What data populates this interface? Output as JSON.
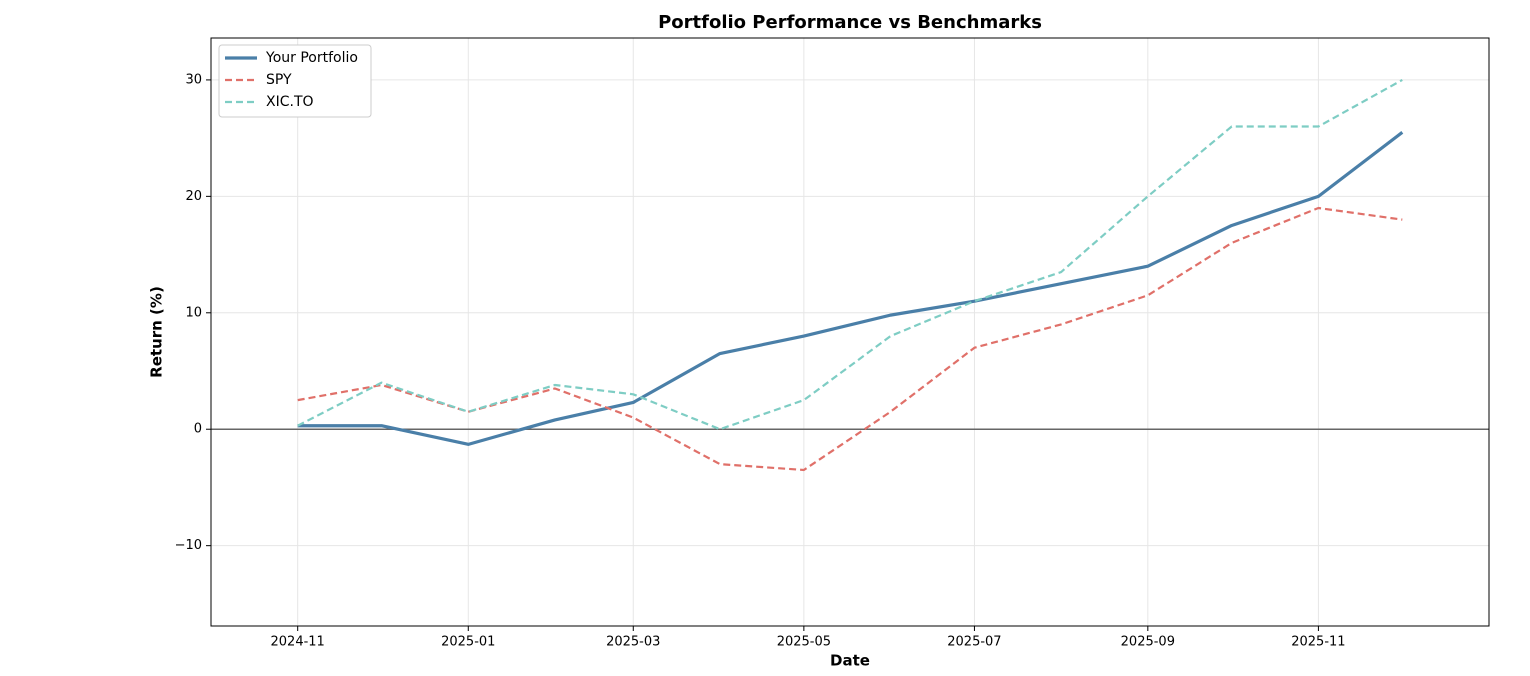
{
  "chart_data": {
    "type": "line",
    "title": "Portfolio Performance vs Benchmarks",
    "x_label": "Date",
    "y_label": "Return (%)",
    "x": [
      "2024-11",
      "2024-12",
      "2025-01",
      "2025-02",
      "2025-03",
      "2025-04",
      "2025-05",
      "2025-06",
      "2025-07",
      "2025-08",
      "2025-09",
      "2025-10",
      "2025-11",
      "2025-12"
    ],
    "series": [
      {
        "name": "Your Portfolio",
        "color": "#4a7fa8",
        "linestyle": "solid",
        "values": [
          0.3,
          0.3,
          -1.3,
          0.8,
          2.3,
          6.5,
          8,
          9.8,
          11,
          12.5,
          14,
          17.5,
          20,
          25.5
        ]
      },
      {
        "name": "SPY",
        "color": "#e07069",
        "linestyle": "dashed",
        "values": [
          2.5,
          3.8,
          1.5,
          3.5,
          1,
          -3,
          -3.5,
          1.5,
          7,
          9,
          11.5,
          16,
          19,
          18
        ]
      },
      {
        "name": "XIC.TO",
        "color": "#7ecdc4",
        "linestyle": "dashed",
        "values": [
          0.3,
          4,
          1.5,
          3.8,
          3,
          0,
          2.5,
          8,
          11,
          13.5,
          20,
          26,
          26,
          30
        ]
      }
    ],
    "xlim": [
      "2024-10",
      "2026-01"
    ],
    "xticks": [
      "2024-11",
      "2025-01",
      "2025-03",
      "2025-05",
      "2025-07",
      "2025-09",
      "2025-11"
    ],
    "ylim": [
      -16.9,
      33.6
    ],
    "yticks": [
      {
        "value": -10,
        "label": "−10"
      },
      0,
      10,
      20,
      30
    ],
    "grid": true,
    "legend": "upper-left"
  }
}
